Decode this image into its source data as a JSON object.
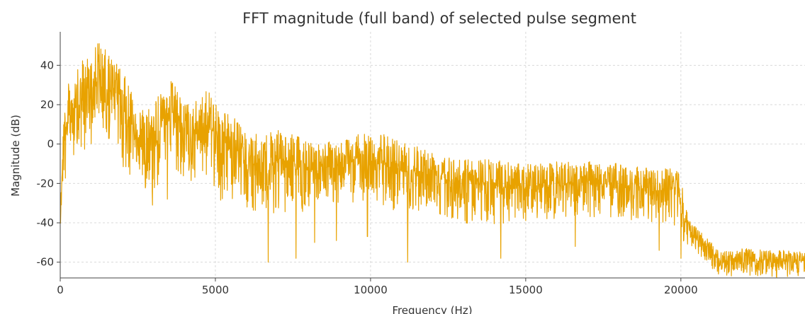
{
  "chart_data": {
    "type": "line",
    "title": "FFT magnitude (full band) of selected pulse segment",
    "xlabel": "Frequency (Hz)",
    "ylabel": "Magnitude (dB)",
    "xlim": [
      0,
      24000
    ],
    "ylim": [
      -68,
      57
    ],
    "xticks": [
      0,
      5000,
      10000,
      15000,
      20000
    ],
    "yticks": [
      -60,
      -40,
      -20,
      0,
      20,
      40
    ],
    "grid": true,
    "line_color": "#E8A200",
    "series": [
      {
        "name": "",
        "envelope": {
          "x": [
            0,
            100,
            200,
            400,
            700,
            1000,
            1200,
            1500,
            1800,
            2100,
            2500,
            3000,
            3300,
            3600,
            3900,
            4200,
            4500,
            4800,
            5200,
            5600,
            6000,
            6500,
            7000,
            7500,
            8000,
            8500,
            9000,
            9500,
            10000,
            10500,
            11000,
            11500,
            12000,
            12500,
            13000,
            14000,
            15000,
            16000,
            17000,
            18000,
            19000,
            19700,
            20000,
            20100,
            20300,
            20600,
            21000,
            21300,
            22000,
            23000,
            24000
          ],
          "upper": [
            -25,
            15,
            30,
            33,
            42,
            49,
            53,
            47,
            42,
            34,
            18,
            22,
            27,
            33,
            23,
            20,
            24,
            28,
            18,
            14,
            5,
            5,
            7,
            5,
            1,
            1,
            2,
            5,
            5,
            5,
            3,
            0,
            -3,
            -5,
            -7,
            -8,
            -10,
            -9,
            -8,
            -10,
            -12,
            -12,
            -15,
            -30,
            -38,
            -44,
            -50,
            -55,
            -53,
            -54,
            -54
          ],
          "lower": [
            -47,
            -25,
            -20,
            -10,
            -8,
            0,
            5,
            0,
            -5,
            -15,
            -20,
            -25,
            -20,
            -15,
            -18,
            -20,
            -15,
            -20,
            -30,
            -30,
            -35,
            -35,
            -35,
            -35,
            -35,
            -32,
            -30,
            -30,
            -30,
            -32,
            -35,
            -35,
            -35,
            -37,
            -40,
            -42,
            -40,
            -38,
            -37,
            -38,
            -40,
            -40,
            -50,
            -50,
            -55,
            -58,
            -63,
            -68,
            -68,
            -68,
            -68
          ]
        },
        "dips": [
          [
            2970,
            -31
          ],
          [
            3450,
            -28
          ],
          [
            6700,
            -60
          ],
          [
            7600,
            -58
          ],
          [
            8200,
            -50
          ],
          [
            8900,
            -49
          ],
          [
            9900,
            -47
          ],
          [
            11200,
            -60
          ],
          [
            14200,
            -58
          ],
          [
            16600,
            -52
          ],
          [
            19300,
            -54
          ],
          [
            20000,
            -58
          ]
        ]
      }
    ]
  }
}
